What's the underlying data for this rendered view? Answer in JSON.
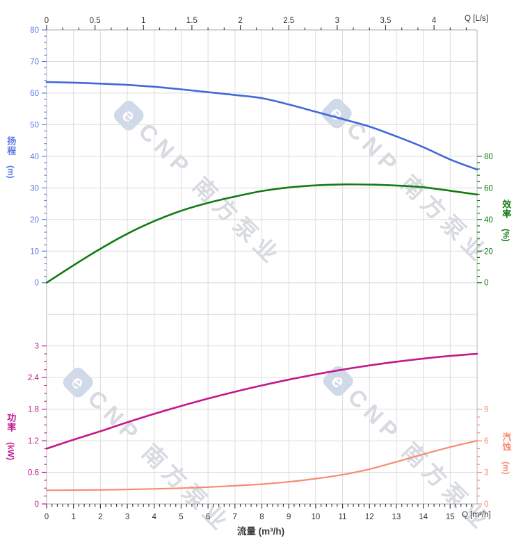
{
  "watermark": {
    "logo_letter": "e",
    "text": "CNP 南方泵业"
  },
  "chart_data": {
    "type": "line",
    "title": "",
    "x_label_bottom": "流量 (m³/h)",
    "x": [
      0,
      1,
      2,
      3,
      4,
      5,
      6,
      7,
      8,
      9,
      10,
      11,
      12,
      13,
      14,
      15,
      16
    ],
    "x_range_m3h": [
      0,
      16
    ],
    "x_range_Ls": [
      0,
      4.444
    ],
    "grid": "on",
    "series": [
      {
        "id": "head",
        "name": "扬程",
        "unit": "m",
        "color": "#4168d9",
        "values": [
          63.5,
          63.3,
          63.0,
          62.6,
          62.0,
          61.2,
          60.3,
          59.4,
          58.4,
          56.4,
          54.1,
          51.8,
          49.4,
          46.3,
          42.9,
          39.0,
          35.8
        ]
      },
      {
        "id": "eff",
        "name": "效率",
        "unit": "%",
        "color": "#137a13",
        "values": [
          0,
          11,
          21.5,
          31,
          39,
          45.5,
          50.5,
          54.5,
          58,
          60.3,
          61.6,
          62.2,
          62.1,
          61.5,
          60.4,
          58.2,
          55.8
        ]
      },
      {
        "id": "power",
        "name": "功率",
        "unit": "kW",
        "color": "#c2188c",
        "values": [
          1.05,
          1.22,
          1.38,
          1.55,
          1.71,
          1.86,
          2.0,
          2.13,
          2.25,
          2.36,
          2.46,
          2.55,
          2.63,
          2.7,
          2.76,
          2.81,
          2.85
        ]
      },
      {
        "id": "npsh",
        "name": "汽蚀",
        "unit": "m",
        "color": "#f98a72",
        "values": [
          1.3,
          1.31,
          1.33,
          1.37,
          1.43,
          1.5,
          1.6,
          1.73,
          1.88,
          2.1,
          2.4,
          2.78,
          3.3,
          4.0,
          4.72,
          5.4,
          6.0
        ]
      }
    ],
    "axes": {
      "top": {
        "label": "Q [L/s]",
        "ticks": [
          "0",
          "0.5",
          "1",
          "1.5",
          "2",
          "2.5",
          "3",
          "3.5",
          "4"
        ],
        "color": "#333333"
      },
      "bottom": {
        "label": "Q [m³/h]",
        "title": "流量 (m³/h)",
        "ticks": [
          "0",
          "1",
          "2",
          "3",
          "4",
          "5",
          "6",
          "7",
          "8",
          "9",
          "10",
          "11",
          "12",
          "13",
          "14",
          "15"
        ],
        "color": "#333333"
      },
      "head": {
        "title": "扬程",
        "unit": "(m)",
        "ticks": [
          "0",
          "10",
          "20",
          "30",
          "40",
          "50",
          "60",
          "70",
          "80"
        ],
        "max": 80,
        "color": "#5b7ce2"
      },
      "eff": {
        "title": "效率",
        "unit": "(%)",
        "ticks": [
          "0",
          "20",
          "40",
          "60",
          "80"
        ],
        "max": 80,
        "color": "#137a13"
      },
      "power": {
        "title": "功率",
        "unit": "(kW)",
        "ticks": [
          "0",
          "0.6",
          "1.2",
          "1.8",
          "2.4",
          "3"
        ],
        "max": 3,
        "color": "#c2188c"
      },
      "npsh": {
        "title": "汽蚀",
        "unit": "(m)",
        "ticks": [
          "0",
          "3",
          "6",
          "9"
        ],
        "max": 9,
        "color": "#f98a72"
      }
    }
  }
}
